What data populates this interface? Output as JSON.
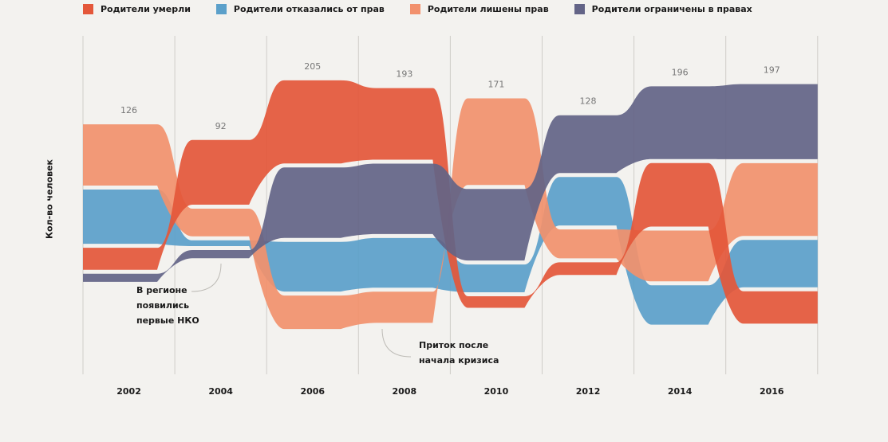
{
  "chart_data": {
    "type": "area",
    "subtype": "sankey-streamgraph",
    "title": "",
    "xlabel": "",
    "ylabel": "Кол-во человек",
    "legend_position": "top-left",
    "grid": true,
    "categories": [
      "2002",
      "2004",
      "2006",
      "2008",
      "2010",
      "2012",
      "2014",
      "2016"
    ],
    "totals": [
      126,
      92,
      205,
      193,
      171,
      128,
      196,
      197
    ],
    "series": [
      {
        "key": "died",
        "name": "Родители умерли",
        "color": "#e4573a",
        "values": [
          19,
          56,
          72,
          62,
          10,
          11,
          55,
          28
        ]
      },
      {
        "key": "refused",
        "name": "Родители отказались от прав",
        "color": "#5ba0ca",
        "values": [
          47,
          5,
          43,
          43,
          24,
          42,
          34,
          41
        ]
      },
      {
        "key": "deprived",
        "name": "Родители лишены прав",
        "color": "#f2916d",
        "values": [
          53,
          24,
          29,
          27,
          75,
          25,
          44,
          63
        ]
      },
      {
        "key": "restricted",
        "name": "Родители ограничены в правах",
        "color": "#636487",
        "values": [
          7,
          7,
          61,
          61,
          62,
          50,
          63,
          65
        ]
      }
    ],
    "stack_order_top_to_bottom": [
      [
        "deprived",
        "refused",
        "died",
        "restricted"
      ],
      [
        "died",
        "deprived",
        "refused",
        "restricted"
      ],
      [
        "died",
        "restricted",
        "refused",
        "deprived"
      ],
      [
        "died",
        "restricted",
        "refused",
        "deprived"
      ],
      [
        "deprived",
        "restricted",
        "refused",
        "died"
      ],
      [
        "restricted",
        "refused",
        "deprived",
        "died"
      ],
      [
        "restricted",
        "died",
        "deprived",
        "refused"
      ],
      [
        "restricted",
        "deprived",
        "refused",
        "died"
      ]
    ],
    "annotations": [
      {
        "text_lines": [
          "В регионе",
          "появились",
          "первые НКО"
        ],
        "near": "2004"
      },
      {
        "text_lines": [
          "Приток после",
          "начала кризиса"
        ],
        "near": "2008"
      }
    ]
  },
  "legend": [
    {
      "label": "Родители умерли",
      "color": "#e4573a"
    },
    {
      "label": "Родители отказались от прав",
      "color": "#5ba0ca"
    },
    {
      "label": "Родители лишены прав",
      "color": "#f2916d"
    },
    {
      "label": "Родители ограничены в правах",
      "color": "#636487"
    }
  ],
  "annotations": {
    "ngo": [
      "В регионе",
      "появились",
      "первые НКО"
    ],
    "crisis": [
      "Приток после",
      "начала кризиса"
    ]
  },
  "ylabel": "Кол-во человек"
}
